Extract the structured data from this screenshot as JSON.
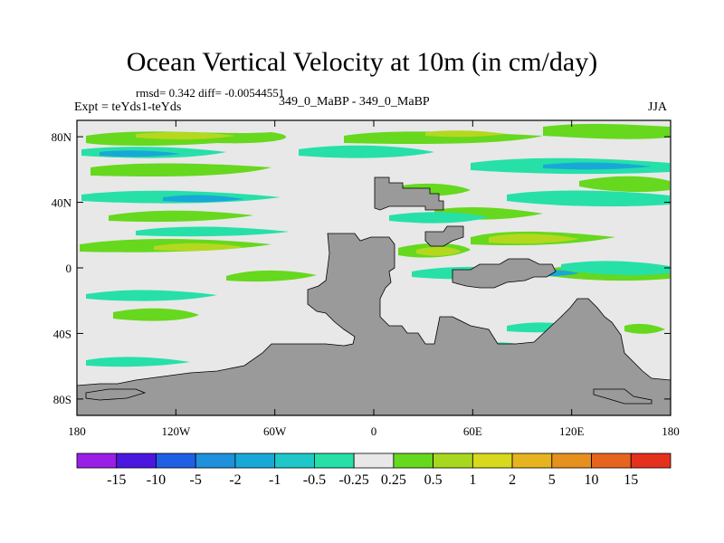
{
  "title": "Ocean Vertical Velocity at 10m (in cm/day)",
  "stats": "rmsd= 0.342 diff= -0.00544551",
  "experiment": "Expt = teYds1-teYds",
  "case": "349_0_MaBP - 349_0_MaBP",
  "season": "JJA",
  "lat_labels": [
    "80N",
    "40N",
    "0",
    "40S",
    "80S"
  ],
  "lat_values": [
    80,
    40,
    0,
    -40,
    -80
  ],
  "lon_labels": [
    "180",
    "120W",
    "60W",
    "0",
    "60E",
    "120E",
    "180"
  ],
  "lon_values": [
    -180,
    -120,
    -60,
    0,
    60,
    120,
    180
  ],
  "colorbar": {
    "colors": [
      "#9a1fe6",
      "#4b16e0",
      "#1f5fe6",
      "#1e90dc",
      "#18a8d8",
      "#1ec8c8",
      "#26e0a8",
      "#e8e8e8",
      "#66d81e",
      "#a8d81e",
      "#d8d81e",
      "#e6b41e",
      "#e6901e",
      "#e6641e",
      "#e6301e"
    ],
    "labels": [
      "-15",
      "-10",
      "-5",
      "-2",
      "-1",
      "-0.5",
      "-0.25",
      "0.25",
      "0.5",
      "1",
      "2",
      "5",
      "10",
      "15"
    ]
  },
  "colors": {
    "ocean_background": "#e8e8e8",
    "land": "#9a9a9a",
    "upwelling": "#66d81e",
    "strong_upwelling": "#b4d81e",
    "downwelling": "#26e0a8",
    "strong_downwelling": "#18a8d8"
  }
}
